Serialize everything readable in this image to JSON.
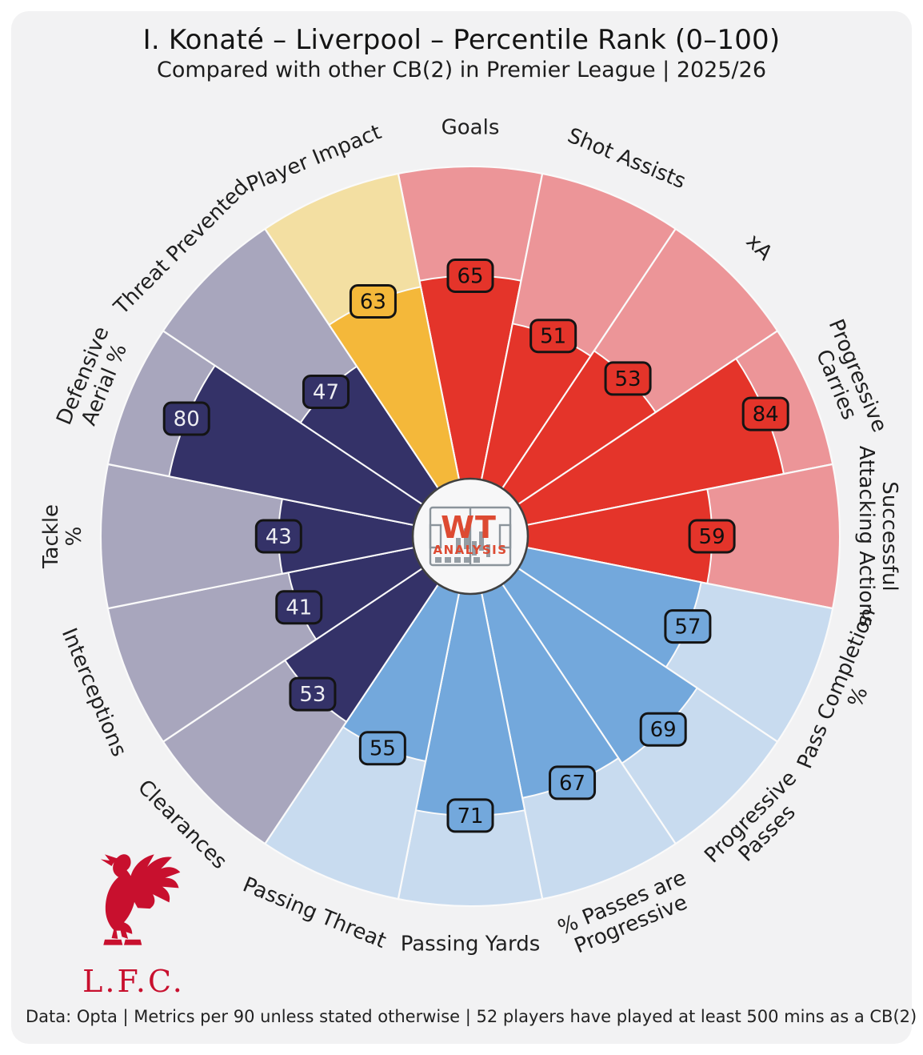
{
  "header": {
    "title": "I. Konaté – Liverpool – Percentile Rank (0–100)",
    "subtitle": "Compared with other CB(2) in Premier League | 2025/26"
  },
  "footer": {
    "note": "Data: Opta | Metrics per 90 unless stated otherwise | 52 players have played at least 500 mins as a CB(2)"
  },
  "branding": {
    "club_initials": "L.F.C.",
    "watermark_top": "WT",
    "watermark_bottom": "ANALYSIS"
  },
  "colors": {
    "page_bg": "#ffffff",
    "card_bg": "#f2f2f3",
    "divider": "#fafafa",
    "center_fill": "#f7f7f8",
    "center_stroke": "#404040",
    "label_text": "#1f1f1f",
    "badge_border": "#141414",
    "lfc_red": "#c8102e",
    "wt_red": "#dd4a32",
    "wt_gray": "#8b949b"
  },
  "chart_data": {
    "type": "pie",
    "subtype": "pizza-percentile-wedges",
    "range": [
      0,
      100
    ],
    "start": "top",
    "direction": "clockwise",
    "slice_angle_deg": 22.5,
    "title": "I. Konaté – Liverpool – Percentile Rank (0–100)",
    "categories": [
      "Goals",
      "Shot Assists",
      "xA",
      "Progressive Carries",
      "Successful Attacking Actions",
      "Pass Completion %",
      "Progressive Passes",
      "% Passes are Progressive",
      "Passing Yards",
      "Passing Threat",
      "Clearances",
      "Interceptions",
      "Tackle %",
      "Defensive Aerial %",
      "Threat Prevented",
      "Player Impact"
    ],
    "values": [
      65,
      51,
      53,
      84,
      59,
      57,
      69,
      67,
      71,
      55,
      53,
      41,
      43,
      80,
      47,
      63
    ],
    "metrics": [
      {
        "label": "Goals",
        "lines": [
          "Goals"
        ],
        "value": 65,
        "group": "attacking"
      },
      {
        "label": "Shot Assists",
        "lines": [
          "Shot Assists"
        ],
        "value": 51,
        "group": "attacking"
      },
      {
        "label": "xA",
        "lines": [
          "xA"
        ],
        "value": 53,
        "group": "attacking"
      },
      {
        "label": "Progressive Carries",
        "lines": [
          "Progressive",
          "Carries"
        ],
        "value": 84,
        "group": "attacking"
      },
      {
        "label": "Successful Attacking Actions",
        "lines": [
          "Successful",
          "Attacking Actions"
        ],
        "value": 59,
        "group": "attacking"
      },
      {
        "label": "Pass Completion %",
        "lines": [
          "Pass Completion",
          "%"
        ],
        "value": 57,
        "group": "possession"
      },
      {
        "label": "Progressive Passes",
        "lines": [
          "Progressive",
          "Passes"
        ],
        "value": 69,
        "group": "possession"
      },
      {
        "label": "% Passes are Progressive",
        "lines": [
          "% Passes are",
          "Progressive"
        ],
        "value": 67,
        "group": "possession"
      },
      {
        "label": "Passing Yards",
        "lines": [
          "Passing Yards"
        ],
        "value": 71,
        "group": "possession"
      },
      {
        "label": "Passing Threat",
        "lines": [
          "Passing Threat"
        ],
        "value": 55,
        "group": "possession"
      },
      {
        "label": "Clearances",
        "lines": [
          "Clearances"
        ],
        "value": 53,
        "group": "defending"
      },
      {
        "label": "Interceptions",
        "lines": [
          "Interceptions"
        ],
        "value": 41,
        "group": "defending"
      },
      {
        "label": "Tackle %",
        "lines": [
          "Tackle",
          "%"
        ],
        "value": 43,
        "group": "defending"
      },
      {
        "label": "Defensive Aerial %",
        "lines": [
          "Defensive",
          "Aerial %"
        ],
        "value": 80,
        "group": "defending"
      },
      {
        "label": "Threat Prevented",
        "lines": [
          "Threat Prevented"
        ],
        "value": 47,
        "group": "defending"
      },
      {
        "label": "Player Impact",
        "lines": [
          "Player Impact"
        ],
        "value": 63,
        "group": "impact"
      }
    ],
    "groups": {
      "attacking": {
        "fill": "#e4342a",
        "bg": "#ec9598",
        "badge_text": "#101010"
      },
      "possession": {
        "fill": "#73a8dc",
        "bg": "#c8dbef",
        "badge_text": "#101010"
      },
      "defending": {
        "fill": "#343268",
        "bg": "#a8a6bd",
        "badge_text": "#eeeef2"
      },
      "impact": {
        "fill": "#f4b83a",
        "bg": "#f3dfa2",
        "badge_text": "#101010"
      }
    },
    "legend_position": "none",
    "grid": false
  }
}
